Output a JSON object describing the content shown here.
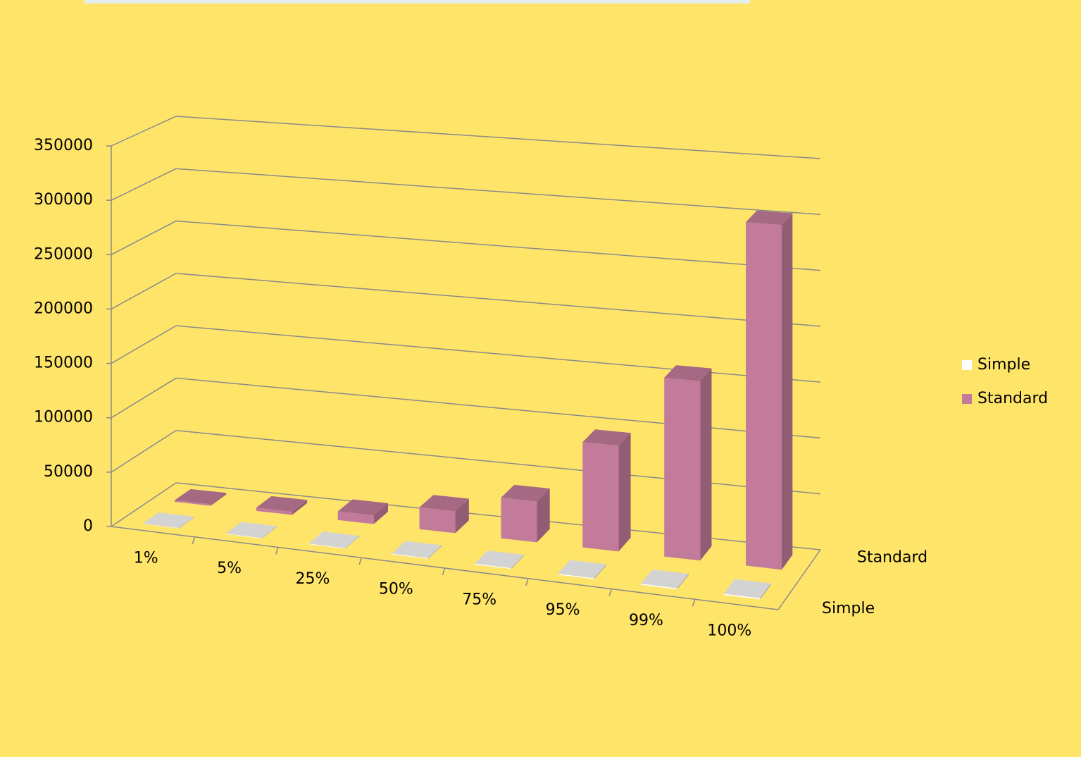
{
  "chart_data": {
    "type": "bar",
    "categories": [
      "1%",
      "5%",
      "25%",
      "50%",
      "75%",
      "95%",
      "99%",
      "100%"
    ],
    "series": [
      {
        "name": "Simple",
        "color": "#ffffff",
        "values": [
          300,
          400,
          500,
          600,
          700,
          800,
          900,
          1000
        ]
      },
      {
        "name": "Standard",
        "color": "#c27b9a",
        "values": [
          1500,
          3000,
          8000,
          20000,
          37000,
          95000,
          160000,
          305000
        ]
      }
    ],
    "ylim": [
      0,
      350000
    ],
    "yticks": [
      0,
      50000,
      100000,
      150000,
      200000,
      250000,
      300000,
      350000
    ],
    "grid": true
  }
}
